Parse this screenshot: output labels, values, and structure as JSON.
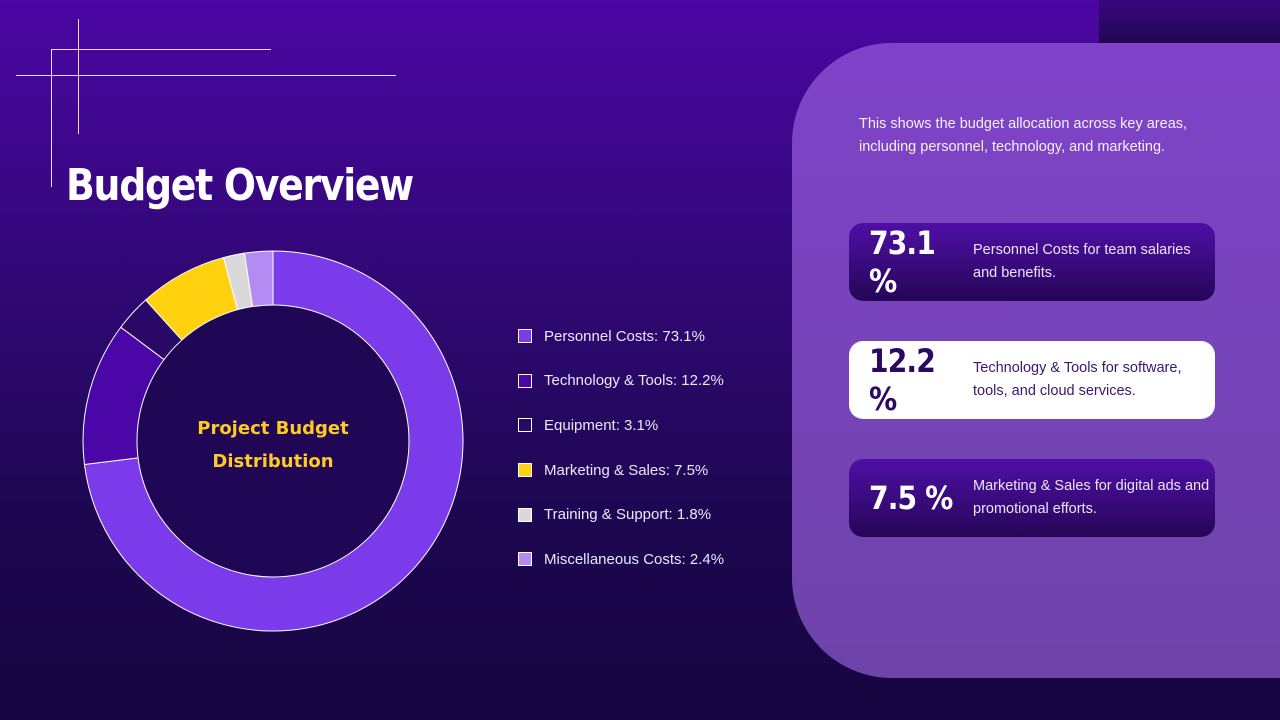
{
  "slide": {
    "title": "Budget Overview",
    "chart_center_label_line1": "Project Budget",
    "chart_center_label_line2": "Distribution"
  },
  "panel": {
    "intro": "This shows the budget allocation across key areas, including personnel, technology, and marketing.",
    "cards": [
      {
        "value": "73.1 %",
        "text": "Personnel Costs for team salaries and benefits.",
        "style": "dark"
      },
      {
        "value": "12.2 %",
        "text": "Technology & Tools for software, tools, and cloud services.",
        "style": "light"
      },
      {
        "value": "7.5 %",
        "text": "Marketing & Sales for digital ads and promotional efforts.",
        "style": "dark"
      }
    ]
  },
  "legend": [
    {
      "label": "Personnel Costs: 73.1%"
    },
    {
      "label": "Technology & Tools: 12.2%"
    },
    {
      "label": "Equipment: 3.1%"
    },
    {
      "label": "Marketing & Sales: 7.5%"
    },
    {
      "label": "Training & Support: 1.8%"
    },
    {
      "label": "Miscellaneous Costs: 2.4%"
    }
  ],
  "chart_data": {
    "type": "pie",
    "variant": "donut",
    "categories": [
      "Personnel Costs",
      "Technology & Tools",
      "Equipment",
      "Marketing & Sales",
      "Training & Support",
      "Miscellaneous Costs"
    ],
    "values": [
      73.1,
      12.2,
      3.1,
      7.5,
      1.8,
      2.4
    ],
    "colors": [
      "#7b3bea",
      "#4a06a6",
      "#2a0867",
      "#ffd10f",
      "#d9d9d9",
      "#b38bf2"
    ],
    "direction": "clockwise",
    "start": "top",
    "legend_position": "right"
  }
}
